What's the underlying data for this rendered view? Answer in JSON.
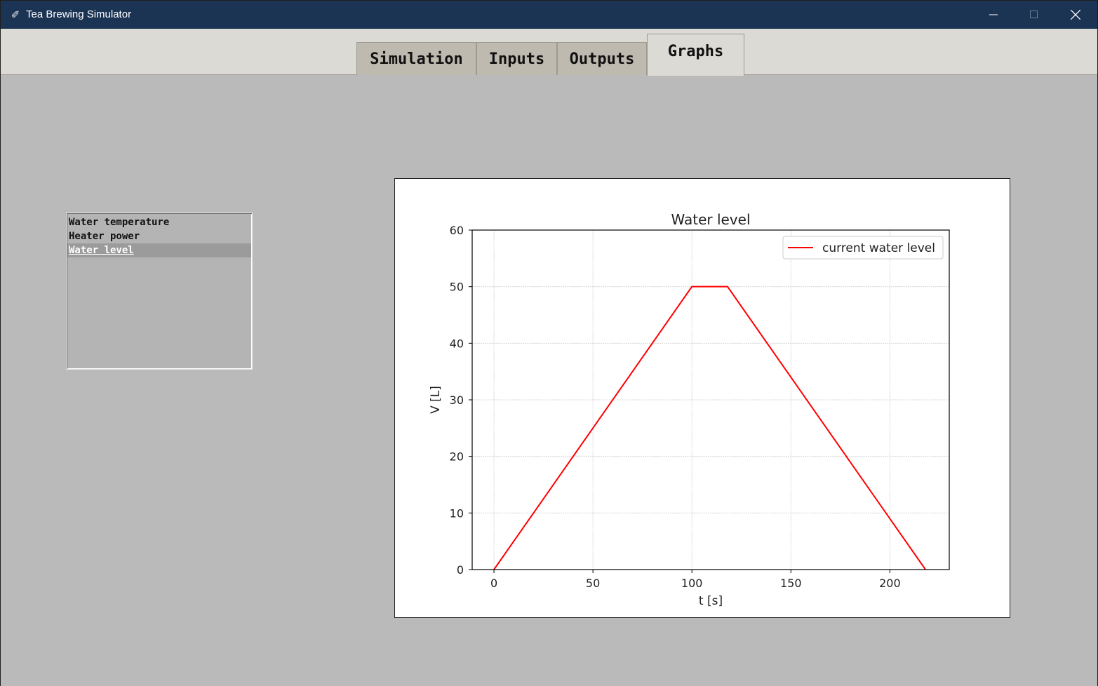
{
  "window": {
    "title": "Tea Brewing Simulator",
    "icon": "feather-icon"
  },
  "tabs": [
    {
      "label": "Simulation",
      "selected": false
    },
    {
      "label": "Inputs",
      "selected": false
    },
    {
      "label": "Outputs",
      "selected": false
    },
    {
      "label": "Graphs",
      "selected": true
    }
  ],
  "graph_list": {
    "items": [
      "Water temperature",
      "Heater power",
      "Water level"
    ],
    "selected_index": 2
  },
  "colors": {
    "titlebar": "#1c3454",
    "series_line": "#ff0000",
    "content_bg": "#bababa"
  },
  "chart_data": {
    "type": "line",
    "title": "Water level",
    "xlabel": "t [s]",
    "ylabel": "V [L]",
    "xlim": [
      -11,
      230
    ],
    "ylim": [
      0,
      60
    ],
    "xticks": [
      0,
      50,
      100,
      150,
      200
    ],
    "yticks": [
      0,
      10,
      20,
      30,
      40,
      50,
      60
    ],
    "grid": true,
    "legend_position": "top-right",
    "series": [
      {
        "name": "current water level",
        "color": "#ff0000",
        "x": [
          0,
          100,
          118,
          218
        ],
        "y": [
          0,
          50,
          50,
          0
        ]
      }
    ]
  }
}
